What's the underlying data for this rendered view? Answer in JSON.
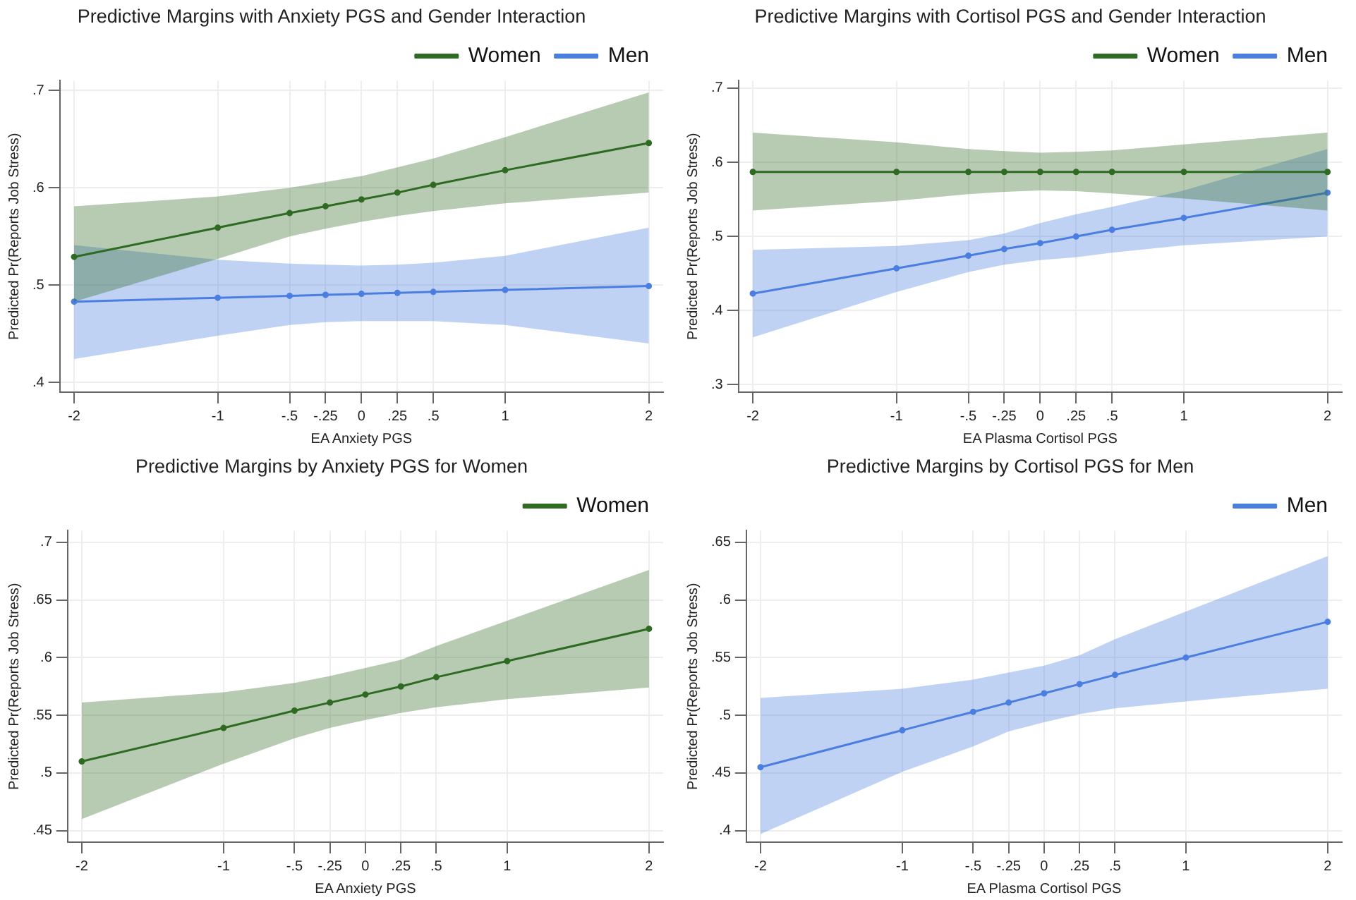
{
  "chart_data": [
    {
      "type": "line",
      "title": "Predictive Margins with Anxiety PGS and Gender Interaction",
      "xlabel": "EA Anxiety PGS",
      "ylabel": "Predicted Pr(Reports Job Stress)",
      "x": [
        -2,
        -1,
        -0.5,
        -0.25,
        0,
        0.25,
        0.5,
        1,
        2
      ],
      "series": [
        {
          "name": "Women",
          "color": "#2f6b22",
          "values": [
            0.529,
            0.559,
            0.574,
            0.581,
            0.588,
            0.595,
            0.603,
            0.618,
            0.646
          ],
          "lower": [
            0.483,
            0.527,
            0.55,
            0.558,
            0.565,
            0.571,
            0.576,
            0.584,
            0.595
          ],
          "upper": [
            0.581,
            0.591,
            0.6,
            0.606,
            0.612,
            0.621,
            0.63,
            0.652,
            0.698
          ]
        },
        {
          "name": "Men",
          "color": "#4a7fe0",
          "values": [
            0.483,
            0.487,
            0.489,
            0.49,
            0.491,
            0.492,
            0.493,
            0.495,
            0.499
          ],
          "lower": [
            0.424,
            0.448,
            0.459,
            0.462,
            0.463,
            0.463,
            0.463,
            0.459,
            0.44
          ],
          "upper": [
            0.541,
            0.526,
            0.522,
            0.521,
            0.52,
            0.521,
            0.523,
            0.53,
            0.559
          ]
        }
      ],
      "xlim": [
        -2.1,
        2.1
      ],
      "xticks": [
        -2,
        -1,
        {
          "value": -0.5,
          "label": "-.5"
        },
        {
          "value": -0.25,
          "label": "-.25"
        },
        0,
        {
          "value": 0.25,
          "label": ".25"
        },
        {
          "value": 0.5,
          "label": ".5"
        },
        1,
        2
      ],
      "ylim": [
        0.39,
        0.71
      ],
      "yticks": [
        {
          "value": 0.4,
          "label": ".4"
        },
        {
          "value": 0.5,
          "label": ".5"
        },
        {
          "value": 0.6,
          "label": ".6"
        },
        {
          "value": 0.7,
          "label": ".7"
        }
      ],
      "grid": true,
      "legend": "top right",
      "marker": "circle",
      "line_style": "solid"
    },
    {
      "type": "line",
      "title": "Predictive Margins with Cortisol PGS and Gender Interaction",
      "xlabel": "EA Plasma Cortisol PGS",
      "ylabel": "Predicted Pr(Reports Job Stress)",
      "x": [
        -2,
        -1,
        -0.5,
        -0.25,
        0,
        0.25,
        0.5,
        1,
        2
      ],
      "series": [
        {
          "name": "Women",
          "color": "#2f6b22",
          "values": [
            0.587,
            0.587,
            0.587,
            0.587,
            0.587,
            0.587,
            0.587,
            0.587,
            0.587
          ],
          "lower": [
            0.535,
            0.548,
            0.557,
            0.56,
            0.562,
            0.561,
            0.558,
            0.551,
            0.535
          ],
          "upper": [
            0.64,
            0.627,
            0.618,
            0.615,
            0.613,
            0.614,
            0.616,
            0.624,
            0.64
          ]
        },
        {
          "name": "Men",
          "color": "#4a7fe0",
          "values": [
            0.423,
            0.457,
            0.474,
            0.483,
            0.491,
            0.5,
            0.509,
            0.525,
            0.559
          ],
          "lower": [
            0.364,
            0.425,
            0.452,
            0.462,
            0.468,
            0.472,
            0.478,
            0.488,
            0.5
          ],
          "upper": [
            0.482,
            0.487,
            0.495,
            0.504,
            0.518,
            0.53,
            0.54,
            0.562,
            0.618
          ]
        }
      ],
      "xlim": [
        -2.1,
        2.1
      ],
      "xticks": [
        -2,
        -1,
        {
          "value": -0.5,
          "label": "-.5"
        },
        {
          "value": -0.25,
          "label": "-.25"
        },
        0,
        {
          "value": 0.25,
          "label": ".25"
        },
        {
          "value": 0.5,
          "label": ".5"
        },
        1,
        2
      ],
      "ylim": [
        0.29,
        0.71
      ],
      "yticks": [
        {
          "value": 0.3,
          "label": ".3"
        },
        {
          "value": 0.4,
          "label": ".4"
        },
        {
          "value": 0.5,
          "label": ".5"
        },
        {
          "value": 0.6,
          "label": ".6"
        },
        {
          "value": 0.7,
          "label": ".7"
        }
      ],
      "grid": true,
      "legend": "top right",
      "marker": "circle",
      "line_style": "solid"
    },
    {
      "type": "line",
      "title": "Predictive Margins by Anxiety PGS for Women",
      "xlabel": "EA Anxiety PGS",
      "ylabel": "Predicted Pr(Reports Job Stress)",
      "x": [
        -2,
        -1,
        -0.5,
        -0.25,
        0,
        0.25,
        0.5,
        1,
        2
      ],
      "series": [
        {
          "name": "Women",
          "color": "#2f6b22",
          "values": [
            0.51,
            0.539,
            0.554,
            0.561,
            0.568,
            0.575,
            0.583,
            0.597,
            0.625
          ],
          "lower": [
            0.46,
            0.508,
            0.53,
            0.539,
            0.546,
            0.552,
            0.557,
            0.564,
            0.574
          ],
          "upper": [
            0.561,
            0.57,
            0.578,
            0.584,
            0.591,
            0.598,
            0.61,
            0.632,
            0.676
          ]
        }
      ],
      "xlim": [
        -2.1,
        2.1
      ],
      "xticks": [
        -2,
        -1,
        {
          "value": -0.5,
          "label": "-.5"
        },
        {
          "value": -0.25,
          "label": "-.25"
        },
        0,
        {
          "value": 0.25,
          "label": ".25"
        },
        {
          "value": 0.5,
          "label": ".5"
        },
        1,
        2
      ],
      "ylim": [
        0.44,
        0.71
      ],
      "yticks": [
        {
          "value": 0.45,
          "label": ".45"
        },
        {
          "value": 0.5,
          "label": ".5"
        },
        {
          "value": 0.55,
          "label": ".55"
        },
        {
          "value": 0.6,
          "label": ".6"
        },
        {
          "value": 0.65,
          "label": ".65"
        },
        {
          "value": 0.7,
          "label": ".7"
        }
      ],
      "grid": true,
      "legend": "top right",
      "marker": "circle",
      "line_style": "solid"
    },
    {
      "type": "line",
      "title": "Predictive Margins by Cortisol PGS for Men",
      "xlabel": "EA Plasma Cortisol PGS",
      "ylabel": "Predicted Pr(Reports Job Stress)",
      "x": [
        -2,
        -1,
        -0.5,
        -0.25,
        0,
        0.25,
        0.5,
        1,
        2
      ],
      "series": [
        {
          "name": "Men",
          "color": "#4a7fe0",
          "values": [
            0.455,
            0.487,
            0.503,
            0.511,
            0.519,
            0.527,
            0.535,
            0.55,
            0.581
          ],
          "lower": [
            0.397,
            0.451,
            0.473,
            0.486,
            0.494,
            0.501,
            0.506,
            0.512,
            0.523
          ],
          "upper": [
            0.515,
            0.523,
            0.531,
            0.537,
            0.543,
            0.552,
            0.566,
            0.59,
            0.638
          ]
        }
      ],
      "xlim": [
        -2.1,
        2.1
      ],
      "xticks": [
        -2,
        -1,
        {
          "value": -0.5,
          "label": "-.5"
        },
        {
          "value": -0.25,
          "label": "-.25"
        },
        0,
        {
          "value": 0.25,
          "label": ".25"
        },
        {
          "value": 0.5,
          "label": ".5"
        },
        1,
        2
      ],
      "ylim": [
        0.39,
        0.66
      ],
      "yticks": [
        {
          "value": 0.4,
          "label": ".4"
        },
        {
          "value": 0.45,
          "label": ".45"
        },
        {
          "value": 0.5,
          "label": ".5"
        },
        {
          "value": 0.55,
          "label": ".55"
        },
        {
          "value": 0.6,
          "label": ".6"
        },
        {
          "value": 0.65,
          "label": ".65"
        }
      ],
      "grid": true,
      "legend": "top right",
      "marker": "circle",
      "line_style": "solid"
    }
  ]
}
